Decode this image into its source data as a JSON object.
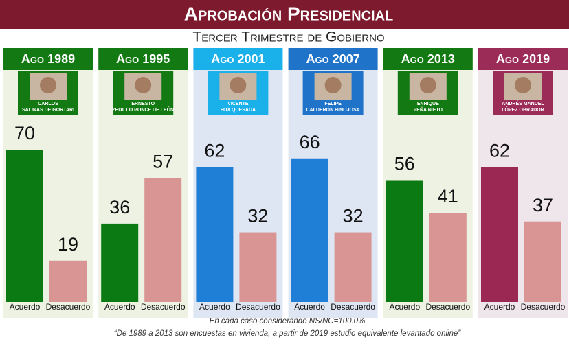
{
  "title": "Aprobación Presidencial",
  "subtitle": "Tercer Trimestre de Gobierno",
  "notes": [
    "En cada caso considerando NS/NC=100.0%",
    "“De 1989 a 2013 son encuestas en vivienda, a partir de 2019 estudio equivalente levantado online”"
  ],
  "chart_data": [
    {
      "type": "bar",
      "title": "Ago 1989",
      "president": [
        "CARLOS",
        "SALINAS DE GORTARI"
      ],
      "categories": [
        "Acuerdo",
        "Desacuerdo"
      ],
      "values": [
        70,
        19
      ],
      "colors": [
        "#0b7a12",
        "#d99594"
      ],
      "header_color": "#137a13",
      "background": "#eef2e3"
    },
    {
      "type": "bar",
      "title": "Ago 1995",
      "president": [
        "ERNESTO",
        "ZEDILLO PONCE DE LEÓN"
      ],
      "categories": [
        "Acuerdo",
        "Desacuerdo"
      ],
      "values": [
        36,
        57
      ],
      "colors": [
        "#0b7a12",
        "#d99594"
      ],
      "header_color": "#137a13",
      "background": "#eef2e3"
    },
    {
      "type": "bar",
      "title": "Ago 2001",
      "president": [
        "VICENTE",
        "FOX QUESADA"
      ],
      "categories": [
        "Acuerdo",
        "Desacuerdo"
      ],
      "values": [
        62,
        32
      ],
      "colors": [
        "#1f7fd6",
        "#d99594"
      ],
      "header_color": "#1ab0ea",
      "background": "#dfe6f3"
    },
    {
      "type": "bar",
      "title": "Ago 2007",
      "president": [
        "FELIPE",
        "CALDERÓN HINOJOSA"
      ],
      "categories": [
        "Acuerdo",
        "Desacuerdo"
      ],
      "values": [
        66,
        32
      ],
      "colors": [
        "#1f7fd6",
        "#d99594"
      ],
      "header_color": "#1f73c9",
      "background": "#dfe6f3"
    },
    {
      "type": "bar",
      "title": "Ago 2013",
      "president": [
        "ENRIQUE",
        "PEÑA NIETO"
      ],
      "categories": [
        "Acuerdo",
        "Desacuerdo"
      ],
      "values": [
        56,
        41
      ],
      "colors": [
        "#0b7a12",
        "#d99594"
      ],
      "header_color": "#137a13",
      "background": "#eef2e3"
    },
    {
      "type": "bar",
      "title": "Ago 2019",
      "president": [
        "ANDRÉS MANUEL",
        "LÓPEZ OBRADOR"
      ],
      "categories": [
        "Acuerdo",
        "Desacuerdo"
      ],
      "values": [
        62,
        37
      ],
      "colors": [
        "#9b2753",
        "#d99594"
      ],
      "header_color": "#9b2b57",
      "background": "#efe6ec"
    }
  ]
}
